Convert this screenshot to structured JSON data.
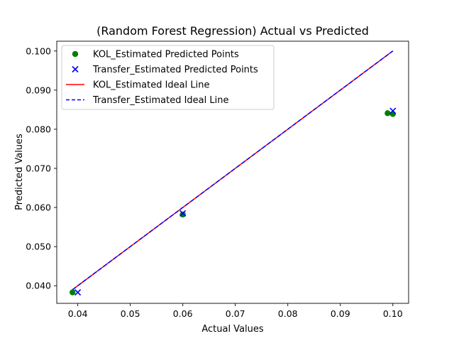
{
  "chart_data": {
    "type": "scatter",
    "title": "(Random Forest Regression) Actual vs Predicted",
    "xlabel": "Actual Values",
    "ylabel": "Predicted Values",
    "xlim": [
      0.036,
      0.103
    ],
    "ylim": [
      0.0355,
      0.1025
    ],
    "xticks": [
      0.04,
      0.05,
      0.06,
      0.07,
      0.08,
      0.09,
      0.1
    ],
    "xtick_labels": [
      "0.04",
      "0.05",
      "0.06",
      "0.07",
      "0.08",
      "0.09",
      "0.10"
    ],
    "yticks": [
      0.04,
      0.05,
      0.06,
      0.07,
      0.08,
      0.09,
      0.1
    ],
    "ytick_labels": [
      "0.040",
      "0.050",
      "0.060",
      "0.070",
      "0.080",
      "0.090",
      "0.100"
    ],
    "grid": false,
    "legend_position": "top-left",
    "series": [
      {
        "name": "KOL_Estimated Predicted Points",
        "kind": "scatter",
        "marker": "circle",
        "color": "#008000",
        "x": [
          0.039,
          0.06,
          0.099,
          0.1
        ],
        "y": [
          0.0383,
          0.0582,
          0.0841,
          0.0839
        ]
      },
      {
        "name": "Transfer_Estimated Predicted Points",
        "kind": "scatter",
        "marker": "x",
        "color": "#0000ff",
        "x": [
          0.04,
          0.06,
          0.1
        ],
        "y": [
          0.0383,
          0.0585,
          0.0847
        ]
      },
      {
        "name": "KOL_Estimated Ideal Line",
        "kind": "line",
        "style": "solid",
        "color": "#ff0000",
        "x": [
          0.039,
          0.1
        ],
        "y": [
          0.039,
          0.1
        ]
      },
      {
        "name": "Transfer_Estimated Ideal Line",
        "kind": "line",
        "style": "dashed",
        "color": "#0000ff",
        "x": [
          0.039,
          0.1
        ],
        "y": [
          0.039,
          0.1
        ]
      }
    ]
  }
}
